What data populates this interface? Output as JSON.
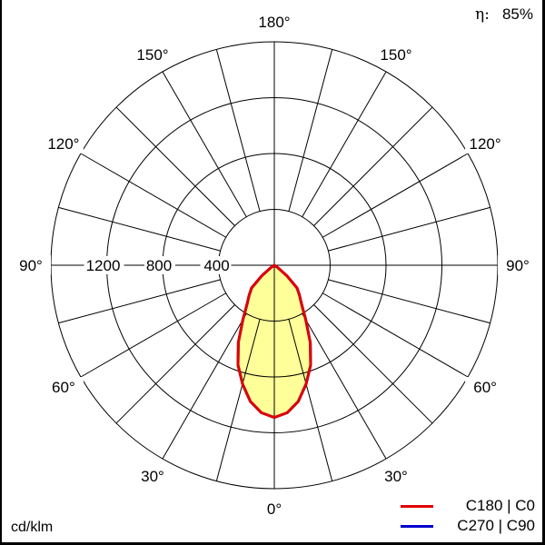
{
  "chart_data": {
    "type": "polar",
    "unit_label": "cd/klm",
    "efficiency_label": "η:",
    "efficiency_value": "85%",
    "radial_ticks": [
      400,
      800,
      1200,
      1600
    ],
    "radial_tick_labels": [
      "400",
      "800",
      "1200"
    ],
    "rmax": 1600,
    "angle_labels": [
      {
        "angle": 0,
        "text": "0°"
      },
      {
        "angle": 30,
        "text": "30°"
      },
      {
        "angle": 60,
        "text": "60°"
      },
      {
        "angle": 90,
        "text": "90°"
      },
      {
        "angle": 120,
        "text": "120°"
      },
      {
        "angle": 150,
        "text": "150°"
      },
      {
        "angle": 180,
        "text": "180°"
      }
    ],
    "grid": true,
    "angle_step": 15,
    "legend_position": "bottom-right",
    "series": [
      {
        "name": "C270 | C90",
        "color": "#0000cc",
        "angles": [
          0,
          5,
          10,
          15,
          20,
          25,
          30,
          35,
          40,
          45,
          50,
          55,
          60
        ],
        "values": [
          1090,
          1060,
          990,
          880,
          760,
          610,
          450,
          340,
          280,
          230,
          120,
          30,
          0
        ]
      },
      {
        "name": "C180 | C0",
        "color": "#e00000",
        "fill": "#ffff99",
        "angles": [
          0,
          5,
          10,
          15,
          20,
          25,
          30,
          35,
          40,
          45,
          50,
          55,
          60
        ],
        "values": [
          1090,
          1060,
          990,
          880,
          760,
          610,
          450,
          340,
          280,
          230,
          120,
          30,
          0
        ]
      }
    ]
  }
}
